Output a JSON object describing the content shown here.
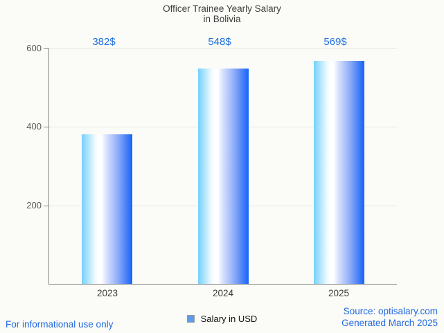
{
  "title": {
    "line1": "Officer Trainee Yearly Salary",
    "line2": "in Bolivia"
  },
  "chart_data": {
    "type": "bar",
    "title": "Officer Trainee Yearly Salary in Bolivia",
    "categories": [
      "2023",
      "2024",
      "2025"
    ],
    "series": [
      {
        "name": "Salary in USD",
        "values": [
          382,
          548,
          569
        ]
      }
    ],
    "value_labels": [
      "382$",
      "548$",
      "569$"
    ],
    "xlabel": "",
    "ylabel": "",
    "ylim": [
      0,
      600
    ],
    "yticks": [
      200,
      400,
      600
    ],
    "grid": true,
    "legend_position": "bottom-center",
    "bar_gradient": [
      "#75d0fb",
      "#ffffff",
      "#1464fb"
    ],
    "value_label_color": "#1e6fe0",
    "axis_color": "#848484"
  },
  "legend": {
    "items": [
      {
        "label": "Salary in USD",
        "marker_color": "#5d9cec"
      }
    ]
  },
  "footer": {
    "disclaimer": "For informational use only",
    "source": "Source: optisalary.com",
    "generated": "Generated March 2025",
    "text_color": "#2169e0"
  }
}
